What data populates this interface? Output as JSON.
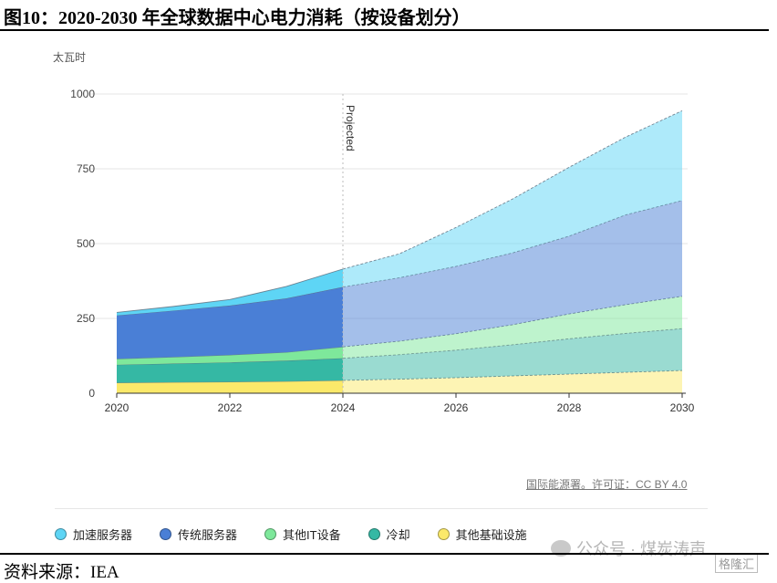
{
  "figure": {
    "title": "图10：2020-2030 年全球数据中心电力消耗（按设备划分）",
    "source": "资料来源：IEA"
  },
  "credit": "国际能源署。许可证：CC BY 4.0",
  "watermark": "公众号 · 煤炭涛声",
  "watermark_logo": "格隆汇",
  "chart_data": {
    "type": "area",
    "stacked": true,
    "ylabel": "太瓦时",
    "ylim": [
      0,
      1000
    ],
    "yticks": [
      0,
      250,
      500,
      750,
      1000
    ],
    "xlim": [
      2020,
      2030
    ],
    "xticks": [
      2020,
      2022,
      2024,
      2026,
      2028,
      2030
    ],
    "projection_start": 2024,
    "projection_label": "Projected",
    "grid": true,
    "legend_position": "bottom",
    "x": [
      2020,
      2021,
      2022,
      2023,
      2024,
      2025,
      2026,
      2027,
      2028,
      2029,
      2030
    ],
    "series": [
      {
        "name": "其他基础设施",
        "color": "#fbe96a",
        "values": [
          35,
          37,
          38,
          40,
          43,
          47,
          52,
          58,
          64,
          70,
          76
        ]
      },
      {
        "name": "冷却",
        "color": "#35b8a4",
        "values": [
          60,
          62,
          65,
          69,
          74,
          82,
          92,
          104,
          118,
          130,
          140
        ]
      },
      {
        "name": "其他IT设备",
        "color": "#7ee89b",
        "values": [
          20,
          22,
          25,
          28,
          38,
          45,
          55,
          67,
          83,
          96,
          108
        ]
      },
      {
        "name": "传统服务器",
        "color": "#4a7fd6",
        "values": [
          145,
          155,
          165,
          180,
          200,
          212,
          225,
          240,
          260,
          300,
          320
        ]
      },
      {
        "name": "加速服务器",
        "color": "#5ed5f5",
        "values": [
          10,
          14,
          20,
          40,
          60,
          80,
          130,
          180,
          230,
          260,
          300
        ]
      }
    ]
  }
}
